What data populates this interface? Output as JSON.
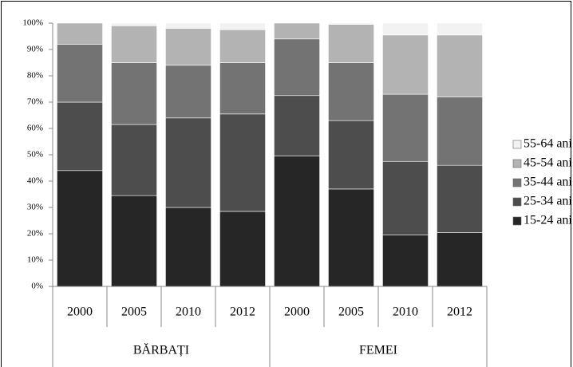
{
  "chart_data": {
    "type": "stacked-bar",
    "categories": [
      "2000",
      "2005",
      "2010",
      "2012",
      "2000",
      "2005",
      "2010",
      "2012"
    ],
    "groups": [
      "BĂRBAȚI",
      "FEMEI"
    ],
    "series": [
      {
        "name": "15-24 ani",
        "color": "#262626",
        "values": [
          44,
          34.5,
          30,
          28.5,
          49.5,
          37,
          19.5,
          20.5
        ]
      },
      {
        "name": "25-34 ani",
        "color": "#4d4d4d",
        "values": [
          26,
          27,
          34,
          37,
          23,
          26,
          28,
          25.5
        ]
      },
      {
        "name": "35-44 ani",
        "color": "#737373",
        "values": [
          22,
          23.5,
          20,
          19.5,
          21.5,
          22,
          25.5,
          26
        ]
      },
      {
        "name": "45-54 ani",
        "color": "#b3b3b3",
        "values": [
          8,
          14,
          14,
          12.5,
          6,
          14.5,
          22.5,
          23.5
        ]
      },
      {
        "name": "55-64 ani",
        "color": "#f2f2f2",
        "values": [
          0,
          1,
          2,
          2.5,
          0,
          0.5,
          4.5,
          4.5
        ]
      }
    ],
    "ylim": [
      0,
      100
    ],
    "yticks": [
      {
        "value": 0,
        "label": "0%"
      },
      {
        "value": 10,
        "label": "10%"
      },
      {
        "value": 20,
        "label": "20%"
      },
      {
        "value": 30,
        "label": "30%"
      },
      {
        "value": 40,
        "label": "40%"
      },
      {
        "value": 50,
        "label": "50%"
      },
      {
        "value": 60,
        "label": "60%"
      },
      {
        "value": 70,
        "label": "70%"
      },
      {
        "value": 80,
        "label": "80%"
      },
      {
        "value": 90,
        "label": "90%"
      },
      {
        "value": 100,
        "label": "100%"
      }
    ]
  }
}
